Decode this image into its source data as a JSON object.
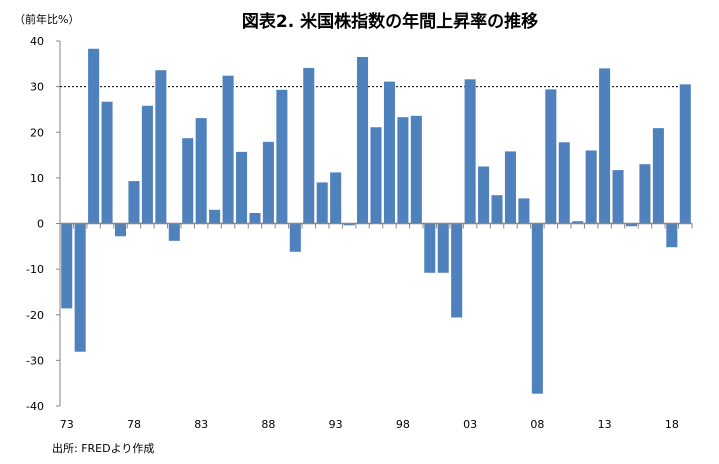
{
  "chart_data": {
    "type": "bar",
    "title": "図表2. 米国株指数の年間上昇率の推移",
    "ylabel": "（前年比%）",
    "source": "出所: FREDより作成",
    "ylim": [
      -40,
      40
    ],
    "yticks": [
      40,
      30,
      20,
      10,
      0,
      -10,
      -20,
      -30,
      -40
    ],
    "reference_line": 30,
    "bar_color": "#4F81BD",
    "categories": [
      "73",
      "74",
      "75",
      "76",
      "77",
      "78",
      "79",
      "80",
      "81",
      "82",
      "83",
      "84",
      "85",
      "86",
      "87",
      "88",
      "89",
      "90",
      "91",
      "92",
      "93",
      "94",
      "95",
      "96",
      "97",
      "98",
      "99",
      "00",
      "01",
      "02",
      "03",
      "04",
      "05",
      "06",
      "07",
      "08",
      "09",
      "10",
      "11",
      "12",
      "13",
      "14",
      "15",
      "16",
      "17",
      "18",
      "19"
    ],
    "xtick_labels": [
      "73",
      "78",
      "83",
      "88",
      "93",
      "98",
      "03",
      "08",
      "13",
      "18"
    ],
    "values": [
      -18.6,
      -28.1,
      38.3,
      26.7,
      -2.8,
      9.3,
      25.8,
      33.6,
      -3.8,
      18.7,
      23.1,
      3.0,
      32.4,
      15.7,
      2.3,
      17.9,
      29.3,
      -6.2,
      34.1,
      9.0,
      11.2,
      -0.4,
      36.5,
      21.1,
      31.1,
      23.3,
      23.6,
      -10.8,
      -10.8,
      -20.6,
      31.6,
      12.5,
      6.2,
      15.8,
      5.5,
      -37.3,
      29.4,
      17.8,
      0.5,
      16.0,
      34.0,
      11.7,
      -0.6,
      13.0,
      20.9,
      -5.2,
      30.5
    ]
  }
}
